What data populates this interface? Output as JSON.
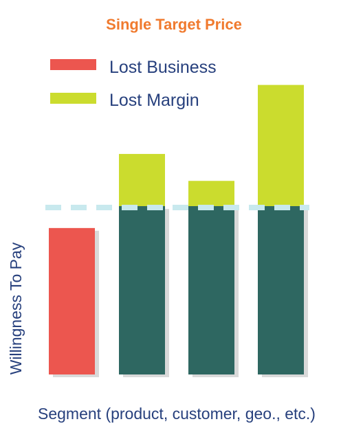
{
  "chart_data": {
    "type": "bar",
    "title": "Single Target Price",
    "xlabel": "Segment (product, customer, geo., etc.)",
    "ylabel": "Willingness To Pay",
    "target_price": 100,
    "ylim": [
      0,
      200
    ],
    "series": [
      {
        "name": "Lost Business",
        "values": [
          87,
          0,
          0,
          0
        ]
      },
      {
        "name": "Lost Margin",
        "values": [
          0,
          31,
          15,
          72
        ]
      }
    ],
    "willingness_to_pay": [
      87,
      131,
      115,
      172
    ],
    "legend_position": "top-left",
    "grid": false
  },
  "colors": {
    "title": "#f07a2e",
    "lost_business": "#ec564f",
    "lost_margin": "#cbdc2e",
    "base": "#2e6761",
    "shadow": "#d9d9d9",
    "target_line": "#c8e9ee",
    "text": "#27407d"
  }
}
